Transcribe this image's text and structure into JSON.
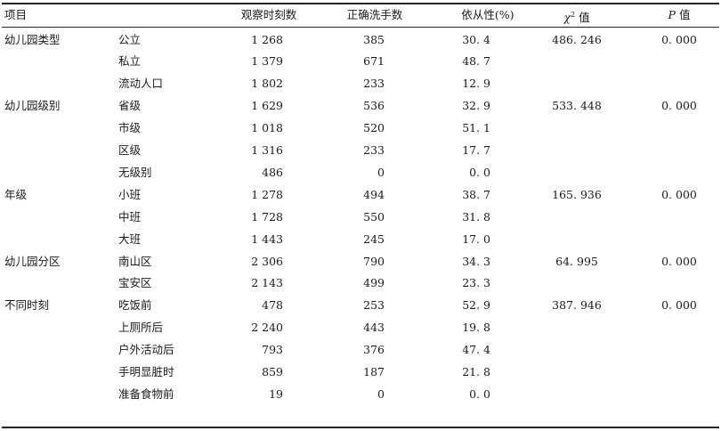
{
  "headers": {
    "item": "项目",
    "observations": "观察时刻数",
    "correct": "正确洗手数",
    "compliance": "依从性(%)",
    "chi_symbol": "χ",
    "chi_sup": "2",
    "chi_suffix": " 值",
    "p_symbol": "P",
    "p_suffix": " 值"
  },
  "rows": [
    {
      "group": "幼儿园类型",
      "sub": "公立",
      "obs": "1 268",
      "correct": "385",
      "rate": "30. 4",
      "chi": "486. 246",
      "p": "0. 000"
    },
    {
      "group": "",
      "sub": "私立",
      "obs": "1 379",
      "correct": "671",
      "rate": "48. 7",
      "chi": "",
      "p": ""
    },
    {
      "group": "",
      "sub": "流动人口",
      "obs": "1 802",
      "correct": "233",
      "rate": "12. 9",
      "chi": "",
      "p": ""
    },
    {
      "group": "幼儿园级别",
      "sub": "省级",
      "obs": "1 629",
      "correct": "536",
      "rate": "32. 9",
      "chi": "533. 448",
      "p": "0. 000"
    },
    {
      "group": "",
      "sub": "市级",
      "obs": "1 018",
      "correct": "520",
      "rate": "51. 1",
      "chi": "",
      "p": ""
    },
    {
      "group": "",
      "sub": "区级",
      "obs": "1 316",
      "correct": "233",
      "rate": "17. 7",
      "chi": "",
      "p": ""
    },
    {
      "group": "",
      "sub": "无级别",
      "obs": "486",
      "correct": "0",
      "rate": "0. 0",
      "chi": "",
      "p": ""
    },
    {
      "group": "年级",
      "sub": "小班",
      "obs": "1 278",
      "correct": "494",
      "rate": "38. 7",
      "chi": "165. 936",
      "p": "0. 000"
    },
    {
      "group": "",
      "sub": "中班",
      "obs": "1 728",
      "correct": "550",
      "rate": "31. 8",
      "chi": "",
      "p": ""
    },
    {
      "group": "",
      "sub": "大班",
      "obs": "1 443",
      "correct": "245",
      "rate": "17. 0",
      "chi": "",
      "p": ""
    },
    {
      "group": "幼儿园分区",
      "sub": "南山区",
      "obs": "2 306",
      "correct": "790",
      "rate": "34. 3",
      "chi": "64. 995",
      "p": "0. 000"
    },
    {
      "group": "",
      "sub": "宝安区",
      "obs": "2 143",
      "correct": "499",
      "rate": "23. 3",
      "chi": "",
      "p": ""
    },
    {
      "group": "不同时刻",
      "sub": "吃饭前",
      "obs": "478",
      "correct": "253",
      "rate": "52. 9",
      "chi": "387. 946",
      "p": "0. 000"
    },
    {
      "group": "",
      "sub": "上厕所后",
      "obs": "2 240",
      "correct": "443",
      "rate": "19. 8",
      "chi": "",
      "p": ""
    },
    {
      "group": "",
      "sub": "户外活动后",
      "obs": "793",
      "correct": "376",
      "rate": "47. 4",
      "chi": "",
      "p": ""
    },
    {
      "group": "",
      "sub": "手明显脏时",
      "obs": "859",
      "correct": "187",
      "rate": "21. 8",
      "chi": "",
      "p": ""
    },
    {
      "group": "",
      "sub": "准备食物前",
      "obs": "19",
      "correct": "0",
      "rate": "0. 0",
      "chi": "",
      "p": ""
    }
  ]
}
